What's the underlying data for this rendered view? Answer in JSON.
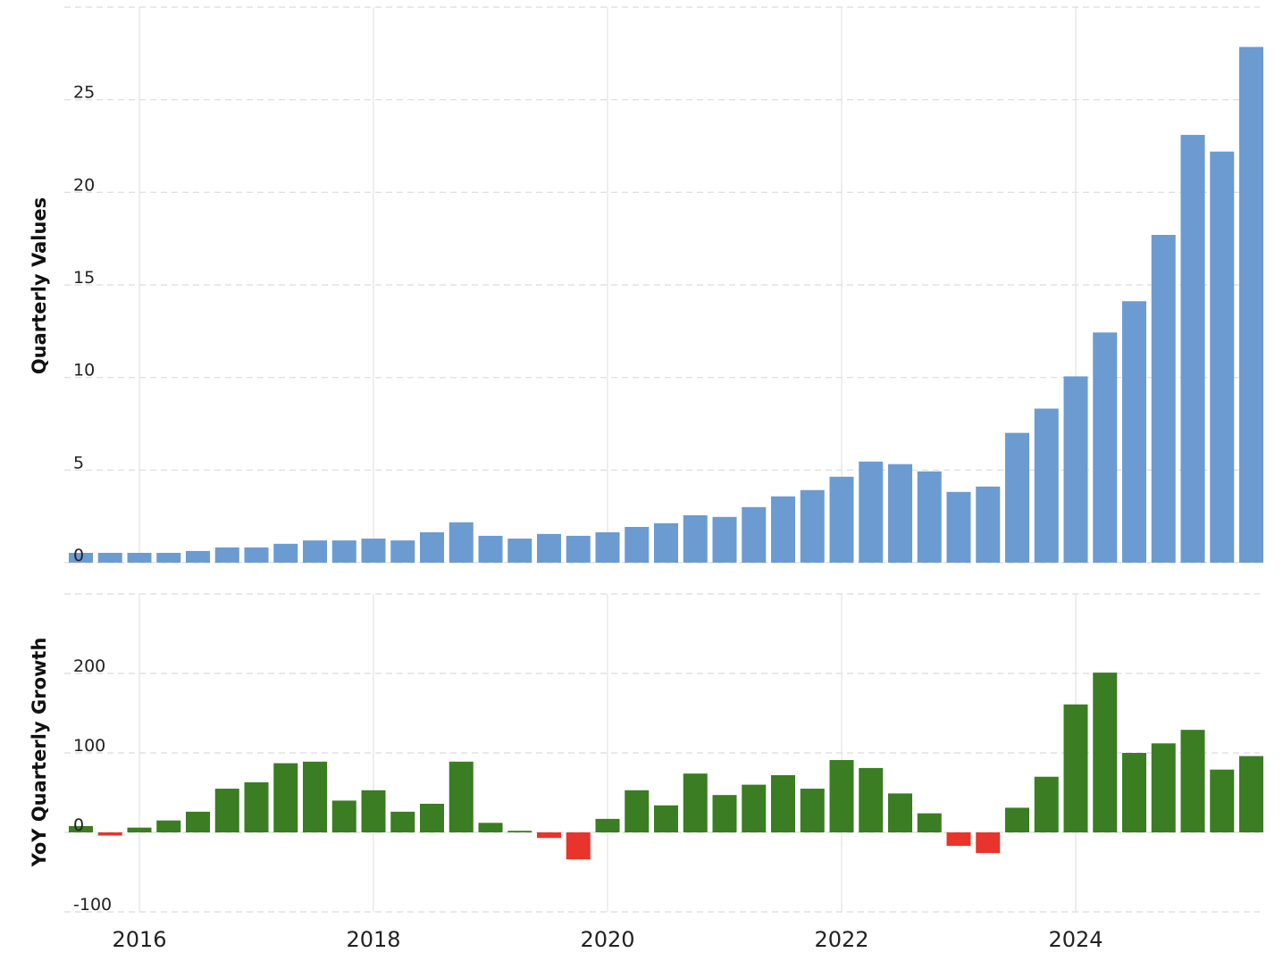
{
  "chart_data": [
    {
      "type": "bar",
      "title": "",
      "ylabel": "Quarterly Values",
      "xlabel": "",
      "ylim": [
        0,
        30
      ],
      "yticks": [
        "0",
        "5",
        "10",
        "15",
        "20",
        "25"
      ],
      "xticks": [
        "2016",
        "2018",
        "2020",
        "2022",
        "2024"
      ],
      "grid": true,
      "bar_color": "#6b9bd1",
      "x_start": 2015.5,
      "x_step": 0.25,
      "values": [
        0.53,
        0.53,
        0.53,
        0.53,
        0.63,
        0.82,
        0.82,
        1.02,
        1.2,
        1.2,
        1.3,
        1.2,
        1.64,
        2.18,
        1.45,
        1.3,
        1.55,
        1.45,
        1.64,
        1.93,
        2.13,
        2.56,
        2.47,
        3.0,
        3.58,
        3.92,
        4.64,
        5.46,
        5.32,
        4.93,
        3.82,
        4.11,
        7.01,
        8.32,
        10.06,
        12.43,
        14.12,
        17.7,
        23.1,
        22.2,
        27.85
      ]
    },
    {
      "type": "bar",
      "title": "",
      "ylabel": "YoY Quarterly Growth",
      "xlabel": "",
      "ylim": [
        -100,
        300
      ],
      "yticks": [
        "-100",
        "0",
        "100",
        "200"
      ],
      "xticks": [
        "2016",
        "2018",
        "2020",
        "2022",
        "2024"
      ],
      "grid": true,
      "positive_color": "#3a7d22",
      "negative_color": "#e8342a",
      "x_start": 2015.5,
      "x_step": 0.25,
      "values": [
        8,
        -4,
        6,
        15,
        26,
        55,
        63,
        87,
        89,
        40,
        53,
        26,
        36,
        89,
        12,
        2,
        -7,
        -34,
        17,
        53,
        34,
        74,
        47,
        60,
        72,
        55,
        91,
        81,
        49,
        24,
        -17,
        -26,
        31,
        70,
        161,
        201,
        100,
        112,
        129,
        79,
        96
      ]
    }
  ]
}
